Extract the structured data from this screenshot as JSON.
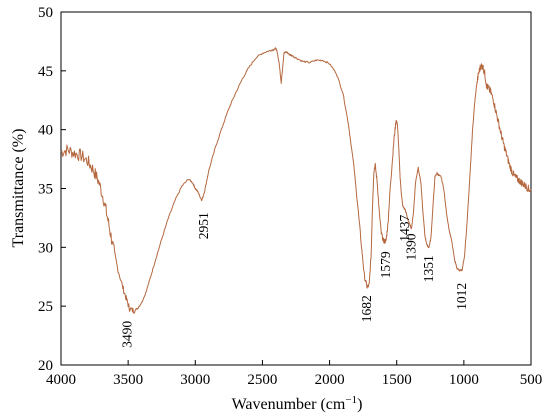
{
  "chart_data": {
    "type": "line",
    "title": "",
    "xlabel": "Wavenumber (cm",
    "xlabel_sup": "−1",
    "xlabel_close": ")",
    "ylabel": "Transmittance (%)",
    "xlim": [
      4000,
      500
    ],
    "ylim": [
      20,
      50
    ],
    "x_reversed": true,
    "grid": false,
    "legend": "none",
    "x_ticks": [
      "4000",
      "3500",
      "3000",
      "2500",
      "2000",
      "1500",
      "1000",
      "500"
    ],
    "y_ticks": [
      "20",
      "25",
      "30",
      "35",
      "40",
      "45",
      "50"
    ],
    "series": [
      {
        "color": "#b5683f",
        "points": [
          [
            4000,
            38.1
          ],
          [
            3950,
            38.3
          ],
          [
            3900,
            38.0
          ],
          [
            3850,
            37.8
          ],
          [
            3800,
            37.3
          ],
          [
            3760,
            36.6
          ],
          [
            3720,
            35.6
          ],
          [
            3680,
            34.0
          ],
          [
            3650,
            32.3
          ],
          [
            3620,
            30.5
          ],
          [
            3580,
            28.3
          ],
          [
            3540,
            26.6
          ],
          [
            3510,
            25.5
          ],
          [
            3490,
            24.8
          ],
          [
            3460,
            24.6
          ],
          [
            3430,
            24.8
          ],
          [
            3400,
            25.3
          ],
          [
            3370,
            26.1
          ],
          [
            3340,
            27.2
          ],
          [
            3300,
            28.8
          ],
          [
            3250,
            30.7
          ],
          [
            3200,
            32.5
          ],
          [
            3150,
            34.0
          ],
          [
            3100,
            35.2
          ],
          [
            3050,
            35.8
          ],
          [
            3020,
            35.5
          ],
          [
            3000,
            35.0
          ],
          [
            2980,
            34.7
          ],
          [
            2960,
            34.2
          ],
          [
            2951,
            34.0
          ],
          [
            2930,
            34.8
          ],
          [
            2900,
            36.5
          ],
          [
            2850,
            38.5
          ],
          [
            2800,
            40.2
          ],
          [
            2750,
            41.8
          ],
          [
            2700,
            43.1
          ],
          [
            2650,
            44.3
          ],
          [
            2600,
            45.3
          ],
          [
            2550,
            46.1
          ],
          [
            2500,
            46.5
          ],
          [
            2450,
            46.7
          ],
          [
            2420,
            46.8
          ],
          [
            2400,
            46.9
          ],
          [
            2390,
            46.6
          ],
          [
            2375,
            45.6
          ],
          [
            2360,
            44.0
          ],
          [
            2350,
            45.2
          ],
          [
            2340,
            46.5
          ],
          [
            2320,
            46.6
          ],
          [
            2300,
            46.4
          ],
          [
            2280,
            46.3
          ],
          [
            2250,
            46.1
          ],
          [
            2200,
            45.8
          ],
          [
            2150,
            45.7
          ],
          [
            2100,
            45.9
          ],
          [
            2050,
            45.9
          ],
          [
            2000,
            45.6
          ],
          [
            1950,
            44.8
          ],
          [
            1900,
            43.1
          ],
          [
            1860,
            40.5
          ],
          [
            1820,
            37.0
          ],
          [
            1790,
            33.5
          ],
          [
            1760,
            29.8
          ],
          [
            1740,
            27.5
          ],
          [
            1720,
            26.6
          ],
          [
            1705,
            26.8
          ],
          [
            1690,
            29.5
          ],
          [
            1682,
            33.0
          ],
          [
            1670,
            36.5
          ],
          [
            1660,
            37.0
          ],
          [
            1645,
            35.5
          ],
          [
            1630,
            33.0
          ],
          [
            1615,
            31.2
          ],
          [
            1600,
            30.6
          ],
          [
            1590,
            30.5
          ],
          [
            1579,
            30.6
          ],
          [
            1565,
            32.0
          ],
          [
            1550,
            34.8
          ],
          [
            1535,
            37.0
          ],
          [
            1520,
            39.2
          ],
          [
            1505,
            40.8
          ],
          [
            1495,
            40.5
          ],
          [
            1485,
            38.5
          ],
          [
            1475,
            36.0
          ],
          [
            1465,
            34.5
          ],
          [
            1455,
            33.5
          ],
          [
            1437,
            33.2
          ],
          [
            1420,
            32.5
          ],
          [
            1405,
            32.0
          ],
          [
            1390,
            31.6
          ],
          [
            1375,
            33.0
          ],
          [
            1360,
            35.5
          ],
          [
            1340,
            36.8
          ],
          [
            1320,
            35.5
          ],
          [
            1305,
            33.0
          ],
          [
            1290,
            31.0
          ],
          [
            1275,
            30.2
          ],
          [
            1260,
            30.0
          ],
          [
            1245,
            30.8
          ],
          [
            1230,
            33.5
          ],
          [
            1215,
            36.0
          ],
          [
            1200,
            36.3
          ],
          [
            1185,
            36.1
          ],
          [
            1170,
            36.0
          ],
          [
            1150,
            35.0
          ],
          [
            1130,
            33.0
          ],
          [
            1110,
            31.5
          ],
          [
            1090,
            30.5
          ],
          [
            1070,
            29.0
          ],
          [
            1050,
            28.2
          ],
          [
            1030,
            28.0
          ],
          [
            1012,
            28.1
          ],
          [
            995,
            29.3
          ],
          [
            980,
            31.5
          ],
          [
            965,
            34.2
          ],
          [
            950,
            37.0
          ],
          [
            935,
            40.0
          ],
          [
            920,
            42.2
          ],
          [
            905,
            43.8
          ],
          [
            890,
            44.8
          ],
          [
            875,
            45.4
          ],
          [
            860,
            45.4
          ],
          [
            845,
            44.8
          ],
          [
            830,
            43.7
          ],
          [
            815,
            43.5
          ],
          [
            800,
            43.2
          ],
          [
            780,
            42.5
          ],
          [
            760,
            41.5
          ],
          [
            740,
            40.5
          ],
          [
            720,
            39.5
          ],
          [
            700,
            38.6
          ],
          [
            680,
            37.8
          ],
          [
            660,
            37.0
          ],
          [
            640,
            36.4
          ],
          [
            620,
            36.0
          ],
          [
            600,
            35.8
          ],
          [
            580,
            35.6
          ],
          [
            560,
            35.4
          ],
          [
            540,
            35.2
          ],
          [
            520,
            35.0
          ],
          [
            500,
            34.8
          ]
        ]
      }
    ],
    "annotations": [
      {
        "text": "3490",
        "x": 3490,
        "y": 24.6
      },
      {
        "text": "2951",
        "x": 2951,
        "y": 34.0
      },
      {
        "text": "1682",
        "x": 1720,
        "y": 26.6
      },
      {
        "text": "1579",
        "x": 1579,
        "y": 30.5
      },
      {
        "text": "1437",
        "x": 1437,
        "y": 33.2
      },
      {
        "text": "1390",
        "x": 1390,
        "y": 31.6
      },
      {
        "text": "1351",
        "x": 1260,
        "y": 30.0
      },
      {
        "text": "1012",
        "x": 1012,
        "y": 28.0
      }
    ]
  }
}
